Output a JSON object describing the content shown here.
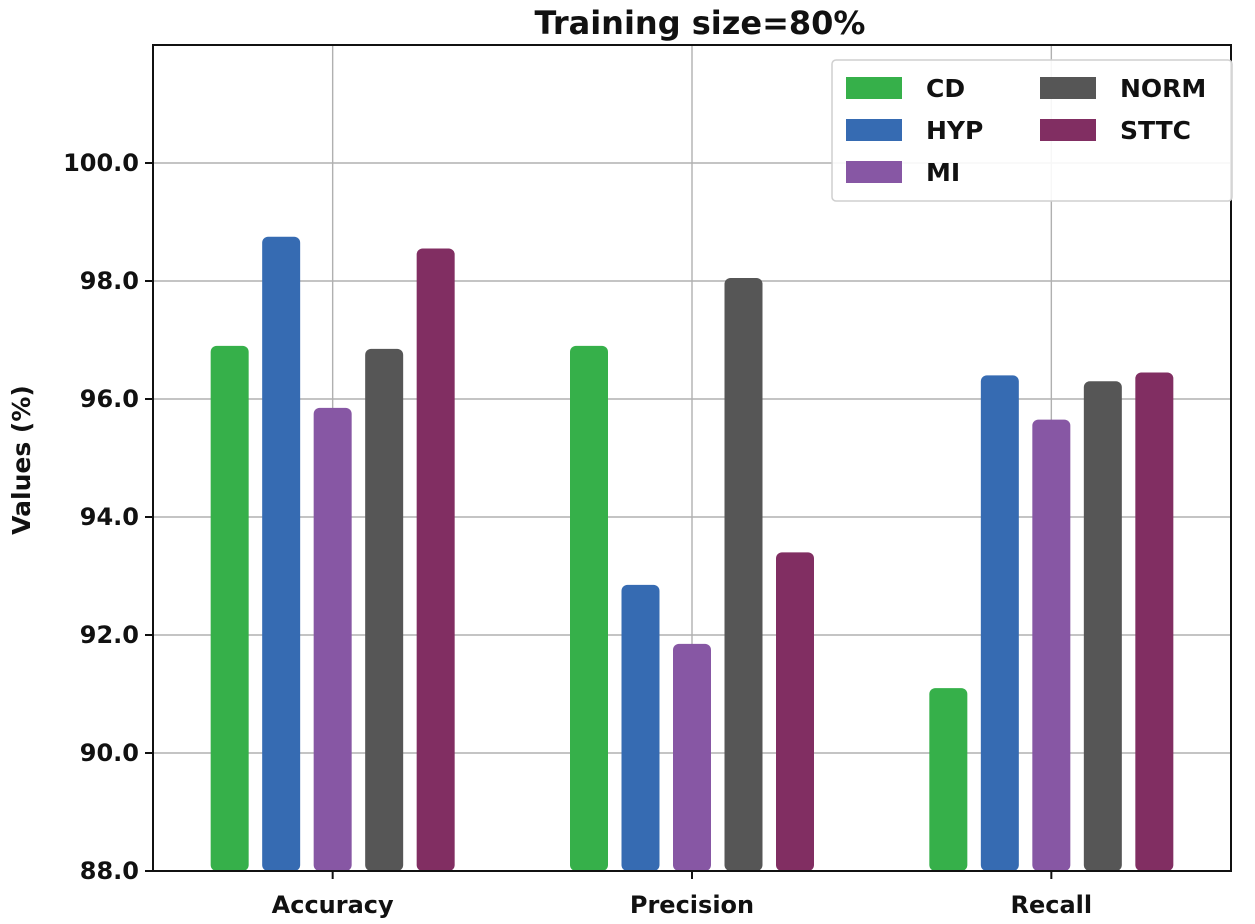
{
  "chart_data": {
    "type": "bar",
    "title": "Training size=80%",
    "xlabel": "",
    "ylabel": "Values (%)",
    "ylim": [
      88,
      102
    ],
    "yticks": [
      "88.0",
      "90.0",
      "92.0",
      "94.0",
      "96.0",
      "98.0",
      "100.0"
    ],
    "grid": true,
    "legend_position": "top-right",
    "categories": [
      "Accuracy",
      "Precision",
      "Recall"
    ],
    "series": [
      {
        "name": "CD",
        "color": "#36b04a",
        "values": [
          96.9,
          96.9,
          91.1
        ]
      },
      {
        "name": "HYP",
        "color": "#366bb2",
        "values": [
          98.75,
          92.85,
          96.4
        ]
      },
      {
        "name": "MI",
        "color": "#8757a4",
        "values": [
          95.85,
          91.85,
          95.65
        ]
      },
      {
        "name": "NORM",
        "color": "#565656",
        "values": [
          96.85,
          98.05,
          96.3
        ]
      },
      {
        "name": "STTC",
        "color": "#812e62",
        "values": [
          98.55,
          93.4,
          96.45
        ]
      }
    ]
  }
}
